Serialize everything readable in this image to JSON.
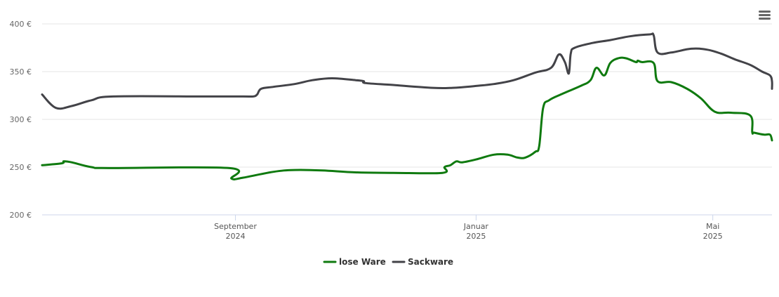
{
  "chart_data": {
    "type": "line",
    "y_unit": "€",
    "ylim": [
      200,
      400
    ],
    "y_ticks": [
      "200 €",
      "250 €",
      "300 €",
      "350 €",
      "400 €"
    ],
    "x_range": [
      "2024-05-26",
      "2025-05-31"
    ],
    "x_ticks": [
      {
        "date": "2024-09-01",
        "line1": "September",
        "line2": "2024"
      },
      {
        "date": "2025-01-01",
        "line1": "Januar",
        "line2": "2025"
      },
      {
        "date": "2025-05-01",
        "line1": "Mai",
        "line2": "2025"
      }
    ],
    "grid": true,
    "legend_position": "bottom",
    "series": [
      {
        "name": "lose Ware",
        "color": "#0f7a0f",
        "points": [
          [
            "2024-05-26",
            252
          ],
          [
            "2024-06-05",
            254
          ],
          [
            "2024-06-06",
            256
          ],
          [
            "2024-06-10",
            255
          ],
          [
            "2024-06-20",
            250
          ],
          [
            "2024-06-30",
            249
          ],
          [
            "2024-08-29",
            249
          ],
          [
            "2024-08-30",
            238
          ],
          [
            "2024-09-05",
            239
          ],
          [
            "2024-09-20",
            245
          ],
          [
            "2024-10-01",
            247
          ],
          [
            "2024-10-15",
            246.5
          ],
          [
            "2024-11-01",
            244.5
          ],
          [
            "2024-11-20",
            244
          ],
          [
            "2024-12-15",
            244
          ],
          [
            "2024-12-16",
            250
          ],
          [
            "2024-12-19",
            252
          ],
          [
            "2024-12-22",
            256
          ],
          [
            "2024-12-25",
            255
          ],
          [
            "2025-01-01",
            258
          ],
          [
            "2025-01-10",
            263
          ],
          [
            "2025-01-17",
            263
          ],
          [
            "2025-01-22",
            260
          ],
          [
            "2025-01-26",
            260
          ],
          [
            "2025-01-31",
            266
          ],
          [
            "2025-02-02",
            272
          ],
          [
            "2025-02-04",
            312
          ],
          [
            "2025-02-07",
            320
          ],
          [
            "2025-02-14",
            327
          ],
          [
            "2025-02-23",
            335
          ],
          [
            "2025-02-28",
            341
          ],
          [
            "2025-03-03",
            354
          ],
          [
            "2025-03-07",
            346
          ],
          [
            "2025-03-10",
            359
          ],
          [
            "2025-03-14",
            364
          ],
          [
            "2025-03-18",
            364
          ],
          [
            "2025-03-23",
            360
          ],
          [
            "2025-03-24",
            361.5
          ],
          [
            "2025-03-26",
            360
          ],
          [
            "2025-04-01",
            359
          ],
          [
            "2025-04-03",
            340
          ],
          [
            "2025-04-10",
            339
          ],
          [
            "2025-04-18",
            332
          ],
          [
            "2025-04-25",
            322
          ],
          [
            "2025-05-02",
            308
          ],
          [
            "2025-05-10",
            307
          ],
          [
            "2025-05-20",
            304
          ],
          [
            "2025-05-21",
            286.5
          ],
          [
            "2025-05-22",
            286
          ],
          [
            "2025-05-27",
            284
          ],
          [
            "2025-05-30",
            284
          ],
          [
            "2025-05-31",
            278
          ]
        ]
      },
      {
        "name": "Sackware",
        "color": "#434348",
        "points": [
          [
            "2024-05-26",
            326
          ],
          [
            "2024-06-02",
            312
          ],
          [
            "2024-06-10",
            314
          ],
          [
            "2024-06-20",
            320
          ],
          [
            "2024-07-01",
            324
          ],
          [
            "2024-08-15",
            324
          ],
          [
            "2024-09-05",
            324
          ],
          [
            "2024-09-10",
            324
          ],
          [
            "2024-09-12",
            326
          ],
          [
            "2024-09-14",
            332
          ],
          [
            "2024-09-20",
            334
          ],
          [
            "2024-10-01",
            337
          ],
          [
            "2024-10-10",
            341
          ],
          [
            "2024-10-20",
            343
          ],
          [
            "2024-11-01",
            341
          ],
          [
            "2024-11-05",
            340
          ],
          [
            "2024-11-06",
            338
          ],
          [
            "2024-11-20",
            336
          ],
          [
            "2024-12-10",
            333
          ],
          [
            "2024-12-20",
            333
          ],
          [
            "2025-01-01",
            335
          ],
          [
            "2025-01-10",
            337
          ],
          [
            "2025-01-20",
            341
          ],
          [
            "2025-01-31",
            349
          ],
          [
            "2025-02-08",
            354
          ],
          [
            "2025-02-12",
            368
          ],
          [
            "2025-02-15",
            360
          ],
          [
            "2025-02-17",
            348
          ],
          [
            "2025-02-18",
            369
          ],
          [
            "2025-02-20",
            375
          ],
          [
            "2025-03-01",
            380
          ],
          [
            "2025-03-10",
            383
          ],
          [
            "2025-03-20",
            387
          ],
          [
            "2025-03-30",
            389
          ],
          [
            "2025-04-01",
            388
          ],
          [
            "2025-04-03",
            370
          ],
          [
            "2025-04-10",
            370
          ],
          [
            "2025-04-20",
            374
          ],
          [
            "2025-04-28",
            373
          ],
          [
            "2025-05-05",
            369
          ],
          [
            "2025-05-12",
            363
          ],
          [
            "2025-05-20",
            357
          ],
          [
            "2025-05-26",
            350
          ],
          [
            "2025-05-30",
            346
          ],
          [
            "2025-05-31",
            340
          ],
          [
            "2025-06-02",
            332
          ]
        ]
      }
    ]
  },
  "menu": {
    "icon": "hamburger-menu-icon"
  }
}
